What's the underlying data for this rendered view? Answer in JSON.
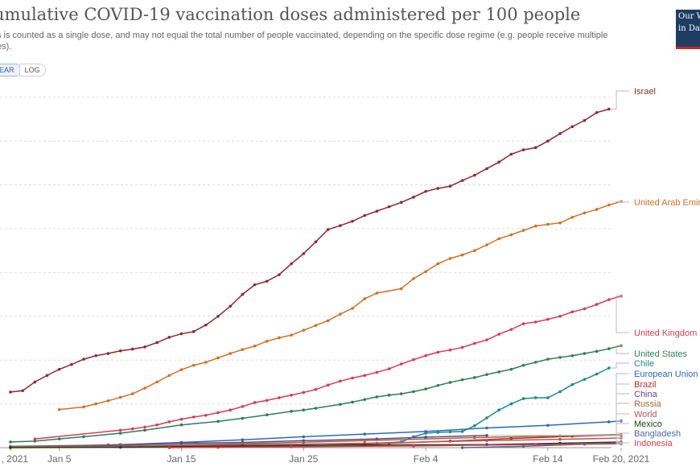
{
  "header": {
    "title": "umulative COVID-19 vaccination doses administered per 100 people",
    "subtitle": "s is counted as a single dose, and may not equal the total number of people vaccinated, depending on the specific dose regime (e.g. people receive multiple es)."
  },
  "scale_toggle": {
    "linear_label": "EAR",
    "log_label": "LOG",
    "selected": "linear"
  },
  "logo": {
    "line1": "Our W",
    "line2": "in Da",
    "colors": {
      "background": "#1d3d63",
      "underline": "#ce261e"
    }
  },
  "chart_data": {
    "type": "line",
    "x_tick_labels": [
      ", 2021",
      "Jan 5",
      "Jan 15",
      "Jan 25",
      "Feb 4",
      "Feb 14",
      "Feb 20, 2021"
    ],
    "xlim": [
      "2021-01-01",
      "2021-02-20"
    ],
    "ylim": [
      0,
      80
    ],
    "y_gridlines": [
      10,
      20,
      30,
      40,
      50,
      60,
      70,
      80
    ],
    "grid": true,
    "legend": "right, labels at line ends",
    "series": [
      {
        "name": "Israel",
        "color": "#8c2a2e",
        "points": [
          [
            "2021-01-01",
            12.7
          ],
          [
            "2021-01-02",
            13.0
          ],
          [
            "2021-01-03",
            15.0
          ],
          [
            "2021-01-04",
            16.5
          ],
          [
            "2021-01-05",
            17.9
          ],
          [
            "2021-01-06",
            19.0
          ],
          [
            "2021-01-07",
            20.2
          ],
          [
            "2021-01-08",
            21.0
          ],
          [
            "2021-01-09",
            21.5
          ],
          [
            "2021-01-10",
            22.1
          ],
          [
            "2021-01-11",
            22.5
          ],
          [
            "2021-01-12",
            23.0
          ],
          [
            "2021-01-13",
            24.0
          ],
          [
            "2021-01-14",
            25.2
          ],
          [
            "2021-01-15",
            26.0
          ],
          [
            "2021-01-16",
            26.5
          ],
          [
            "2021-01-17",
            28.0
          ],
          [
            "2021-01-18",
            30.0
          ],
          [
            "2021-01-19",
            32.3
          ],
          [
            "2021-01-20",
            35.0
          ],
          [
            "2021-01-21",
            37.2
          ],
          [
            "2021-01-22",
            38.0
          ],
          [
            "2021-01-23",
            39.5
          ],
          [
            "2021-01-24",
            42.0
          ],
          [
            "2021-01-25",
            44.3
          ],
          [
            "2021-01-26",
            47.0
          ],
          [
            "2021-01-27",
            49.8
          ],
          [
            "2021-01-28",
            50.7
          ],
          [
            "2021-01-29",
            51.7
          ],
          [
            "2021-01-30",
            53.0
          ],
          [
            "2021-01-31",
            54.0
          ],
          [
            "2021-02-01",
            55.0
          ],
          [
            "2021-02-02",
            56.0
          ],
          [
            "2021-02-03",
            57.2
          ],
          [
            "2021-02-04",
            58.5
          ],
          [
            "2021-02-05",
            59.2
          ],
          [
            "2021-02-06",
            59.7
          ],
          [
            "2021-02-07",
            61.0
          ],
          [
            "2021-02-08",
            62.2
          ],
          [
            "2021-02-09",
            63.7
          ],
          [
            "2021-02-10",
            65.2
          ],
          [
            "2021-02-11",
            67.0
          ],
          [
            "2021-02-12",
            68.0
          ],
          [
            "2021-02-13",
            68.5
          ],
          [
            "2021-02-14",
            70.0
          ],
          [
            "2021-02-15",
            71.7
          ],
          [
            "2021-02-16",
            73.3
          ],
          [
            "2021-02-17",
            74.7
          ],
          [
            "2021-02-18",
            76.5
          ],
          [
            "2021-02-19",
            77.3
          ]
        ]
      },
      {
        "name": "United Arab Emirates",
        "color": "#d36f24",
        "points": [
          [
            "2021-01-05",
            8.7
          ],
          [
            "2021-01-07",
            9.3
          ],
          [
            "2021-01-08",
            10.0
          ],
          [
            "2021-01-09",
            10.7
          ],
          [
            "2021-01-10",
            11.5
          ],
          [
            "2021-01-11",
            12.3
          ],
          [
            "2021-01-12",
            13.6
          ],
          [
            "2021-01-13",
            15.0
          ],
          [
            "2021-01-14",
            16.5
          ],
          [
            "2021-01-15",
            17.8
          ],
          [
            "2021-01-16",
            18.8
          ],
          [
            "2021-01-17",
            19.5
          ],
          [
            "2021-01-18",
            20.5
          ],
          [
            "2021-01-19",
            21.5
          ],
          [
            "2021-01-20",
            22.4
          ],
          [
            "2021-01-21",
            23.2
          ],
          [
            "2021-01-22",
            24.3
          ],
          [
            "2021-01-23",
            25.1
          ],
          [
            "2021-01-24",
            25.7
          ],
          [
            "2021-01-25",
            26.8
          ],
          [
            "2021-01-26",
            27.9
          ],
          [
            "2021-01-27",
            29.0
          ],
          [
            "2021-01-28",
            30.5
          ],
          [
            "2021-01-29",
            31.8
          ],
          [
            "2021-01-30",
            34.0
          ],
          [
            "2021-01-31",
            35.3
          ],
          [
            "2021-02-02",
            36.3
          ],
          [
            "2021-02-03",
            38.6
          ],
          [
            "2021-02-04",
            40.2
          ],
          [
            "2021-02-05",
            42.0
          ],
          [
            "2021-02-06",
            43.2
          ],
          [
            "2021-02-07",
            44.0
          ],
          [
            "2021-02-08",
            45.0
          ],
          [
            "2021-02-09",
            46.3
          ],
          [
            "2021-02-10",
            47.7
          ],
          [
            "2021-02-11",
            48.6
          ],
          [
            "2021-02-12",
            49.6
          ],
          [
            "2021-02-13",
            50.6
          ],
          [
            "2021-02-14",
            51.0
          ],
          [
            "2021-02-15",
            51.3
          ],
          [
            "2021-02-16",
            52.6
          ],
          [
            "2021-02-17",
            53.6
          ],
          [
            "2021-02-18",
            54.4
          ],
          [
            "2021-02-19",
            55.4
          ],
          [
            "2021-02-20",
            56.2
          ]
        ]
      },
      {
        "name": "United Kingdom",
        "color": "#d73c50",
        "points": [
          [
            "2021-01-03",
            2.0
          ],
          [
            "2021-01-10",
            4.0
          ],
          [
            "2021-01-11",
            4.3
          ],
          [
            "2021-01-12",
            4.7
          ],
          [
            "2021-01-13",
            5.2
          ],
          [
            "2021-01-14",
            5.9
          ],
          [
            "2021-01-15",
            6.5
          ],
          [
            "2021-01-16",
            7.0
          ],
          [
            "2021-01-17",
            7.4
          ],
          [
            "2021-01-18",
            8.0
          ],
          [
            "2021-01-19",
            8.6
          ],
          [
            "2021-01-20",
            9.4
          ],
          [
            "2021-01-21",
            10.3
          ],
          [
            "2021-01-22",
            10.8
          ],
          [
            "2021-01-23",
            11.4
          ],
          [
            "2021-01-24",
            12.0
          ],
          [
            "2021-01-25",
            12.6
          ],
          [
            "2021-01-26",
            13.3
          ],
          [
            "2021-01-27",
            14.3
          ],
          [
            "2021-01-28",
            15.2
          ],
          [
            "2021-01-29",
            15.9
          ],
          [
            "2021-01-30",
            16.5
          ],
          [
            "2021-01-31",
            17.2
          ],
          [
            "2021-02-01",
            18.0
          ],
          [
            "2021-02-02",
            19.1
          ],
          [
            "2021-02-03",
            20.1
          ],
          [
            "2021-02-04",
            21.0
          ],
          [
            "2021-02-05",
            21.8
          ],
          [
            "2021-02-06",
            22.3
          ],
          [
            "2021-02-07",
            22.9
          ],
          [
            "2021-02-08",
            23.8
          ],
          [
            "2021-02-09",
            24.6
          ],
          [
            "2021-02-10",
            25.9
          ],
          [
            "2021-02-11",
            27.0
          ],
          [
            "2021-02-12",
            28.3
          ],
          [
            "2021-02-13",
            28.7
          ],
          [
            "2021-02-14",
            29.3
          ],
          [
            "2021-02-15",
            30.0
          ],
          [
            "2021-02-16",
            31.0
          ],
          [
            "2021-02-17",
            31.7
          ],
          [
            "2021-02-18",
            32.7
          ],
          [
            "2021-02-19",
            33.8
          ],
          [
            "2021-02-20",
            34.6
          ]
        ]
      },
      {
        "name": "United States",
        "color": "#2e7d5b",
        "points": [
          [
            "2021-01-01",
            1.3
          ],
          [
            "2021-01-03",
            1.5
          ],
          [
            "2021-01-05",
            2.0
          ],
          [
            "2021-01-07",
            2.5
          ],
          [
            "2021-01-10",
            3.3
          ],
          [
            "2021-01-12",
            4.0
          ],
          [
            "2021-01-15",
            5.2
          ],
          [
            "2021-01-18",
            6.0
          ],
          [
            "2021-01-20",
            6.7
          ],
          [
            "2021-01-22",
            7.5
          ],
          [
            "2021-01-24",
            8.3
          ],
          [
            "2021-01-25",
            8.6
          ],
          [
            "2021-01-26",
            9.0
          ],
          [
            "2021-01-28",
            9.9
          ],
          [
            "2021-01-29",
            10.4
          ],
          [
            "2021-01-30",
            11.0
          ],
          [
            "2021-01-31",
            11.6
          ],
          [
            "2021-02-01",
            12.0
          ],
          [
            "2021-02-02",
            12.3
          ],
          [
            "2021-02-03",
            12.8
          ],
          [
            "2021-02-04",
            13.4
          ],
          [
            "2021-02-05",
            14.2
          ],
          [
            "2021-02-06",
            14.9
          ],
          [
            "2021-02-07",
            15.5
          ],
          [
            "2021-02-08",
            16.0
          ],
          [
            "2021-02-09",
            16.7
          ],
          [
            "2021-02-10",
            17.3
          ],
          [
            "2021-02-11",
            17.9
          ],
          [
            "2021-02-12",
            18.8
          ],
          [
            "2021-02-13",
            19.5
          ],
          [
            "2021-02-14",
            20.2
          ],
          [
            "2021-02-15",
            20.6
          ],
          [
            "2021-02-16",
            21.0
          ],
          [
            "2021-02-17",
            21.5
          ],
          [
            "2021-02-18",
            22.0
          ],
          [
            "2021-02-19",
            22.6
          ],
          [
            "2021-02-20",
            23.3
          ]
        ]
      },
      {
        "name": "Chile",
        "color": "#1c8a8a",
        "points": [
          [
            "2021-01-01",
            0.2
          ],
          [
            "2021-01-25",
            0.8
          ],
          [
            "2021-01-31",
            1.0
          ],
          [
            "2021-02-02",
            1.3
          ],
          [
            "2021-02-03",
            2.5
          ],
          [
            "2021-02-04",
            3.3
          ],
          [
            "2021-02-05",
            3.5
          ],
          [
            "2021-02-06",
            3.6
          ],
          [
            "2021-02-07",
            3.7
          ],
          [
            "2021-02-08",
            5.0
          ],
          [
            "2021-02-09",
            6.8
          ],
          [
            "2021-02-10",
            8.6
          ],
          [
            "2021-02-11",
            10.0
          ],
          [
            "2021-02-12",
            11.2
          ],
          [
            "2021-02-13",
            11.4
          ],
          [
            "2021-02-14",
            11.4
          ],
          [
            "2021-02-15",
            12.8
          ],
          [
            "2021-02-16",
            14.4
          ],
          [
            "2021-02-17",
            15.6
          ],
          [
            "2021-02-18",
            16.8
          ],
          [
            "2021-02-19",
            18.2
          ]
        ]
      },
      {
        "name": "European Union",
        "color": "#286bbb",
        "points": [
          [
            "2021-01-01",
            0.1
          ],
          [
            "2021-01-05",
            0.3
          ],
          [
            "2021-01-10",
            0.7
          ],
          [
            "2021-01-15",
            1.2
          ],
          [
            "2021-01-20",
            1.8
          ],
          [
            "2021-01-25",
            2.5
          ],
          [
            "2021-01-30",
            3.1
          ],
          [
            "2021-02-04",
            3.7
          ],
          [
            "2021-02-09",
            4.5
          ],
          [
            "2021-02-14",
            5.1
          ],
          [
            "2021-02-19",
            5.9
          ],
          [
            "2021-02-20",
            6.1
          ]
        ]
      },
      {
        "name": "Brazil",
        "color": "#be2d22",
        "points": [
          [
            "2021-01-18",
            0.1
          ],
          [
            "2021-01-25",
            0.4
          ],
          [
            "2021-02-01",
            1.0
          ],
          [
            "2021-02-06",
            1.5
          ],
          [
            "2021-02-11",
            2.1
          ],
          [
            "2021-02-16",
            2.6
          ],
          [
            "2021-02-20",
            2.9
          ]
        ]
      },
      {
        "name": "China",
        "color": "#6d3e91",
        "points": [
          [
            "2021-01-01",
            0.3
          ],
          [
            "2021-01-09",
            0.6
          ],
          [
            "2021-01-15",
            1.0
          ],
          [
            "2021-01-20",
            1.2
          ],
          [
            "2021-01-25",
            1.6
          ],
          [
            "2021-01-31",
            2.0
          ],
          [
            "2021-02-04",
            2.4
          ],
          [
            "2021-02-09",
            2.8
          ]
        ]
      },
      {
        "name": "Russia",
        "color": "#996d39",
        "points": [
          [
            "2021-01-01",
            0.2
          ],
          [
            "2021-01-10",
            0.4
          ],
          [
            "2021-01-20",
            0.9
          ],
          [
            "2021-01-30",
            1.6
          ],
          [
            "2021-02-08",
            2.3
          ],
          [
            "2021-02-15",
            2.7
          ],
          [
            "2021-02-20",
            3.0
          ]
        ]
      },
      {
        "name": "World",
        "color": "#c15065",
        "points": [
          [
            "2021-01-01",
            0.1
          ],
          [
            "2021-01-10",
            0.3
          ],
          [
            "2021-01-20",
            0.6
          ],
          [
            "2021-01-30",
            1.0
          ],
          [
            "2021-02-09",
            1.6
          ],
          [
            "2021-02-15",
            1.9
          ],
          [
            "2021-02-20",
            2.2
          ]
        ]
      },
      {
        "name": "Mexico",
        "color": "#18470f",
        "points": [
          [
            "2021-01-01",
            0.0
          ],
          [
            "2021-01-10",
            0.1
          ],
          [
            "2021-01-20",
            0.4
          ],
          [
            "2021-01-30",
            0.6
          ],
          [
            "2021-02-09",
            0.7
          ],
          [
            "2021-02-15",
            1.0
          ],
          [
            "2021-02-20",
            1.3
          ]
        ]
      },
      {
        "name": "Bangladesh",
        "color": "#4c6a9c",
        "points": [
          [
            "2021-02-07",
            0.0
          ],
          [
            "2021-02-12",
            0.3
          ],
          [
            "2021-02-17",
            0.8
          ],
          [
            "2021-02-20",
            1.1
          ]
        ]
      },
      {
        "name": "Indonesia",
        "color": "#d73c50",
        "points": [
          [
            "2021-01-14",
            0.0
          ],
          [
            "2021-01-24",
            0.2
          ],
          [
            "2021-02-03",
            0.4
          ],
          [
            "2021-02-13",
            0.7
          ],
          [
            "2021-02-20",
            0.9
          ]
        ]
      }
    ]
  }
}
